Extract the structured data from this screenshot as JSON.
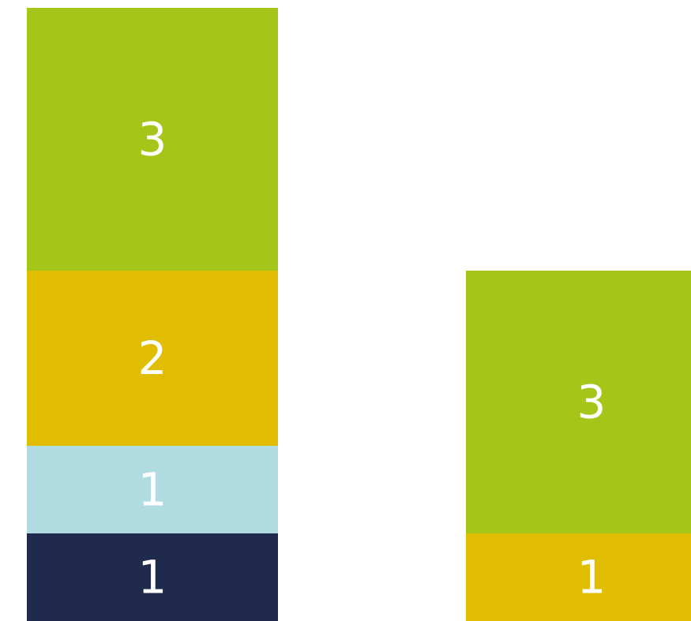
{
  "chart_data": {
    "type": "bar",
    "stacked": true,
    "title": "",
    "xlabel": "",
    "ylabel": "",
    "categories": [
      "",
      ""
    ],
    "ylim": [
      0,
      7
    ],
    "grid": false,
    "legend": "none",
    "series": [
      {
        "color": "#1f2a4d",
        "values": [
          1,
          0
        ]
      },
      {
        "color": "#b0dbe1",
        "values": [
          1,
          0
        ]
      },
      {
        "color": "#e0bd00",
        "values": [
          2,
          1
        ]
      },
      {
        "color": "#a6c519",
        "values": [
          3,
          3
        ]
      }
    ]
  }
}
